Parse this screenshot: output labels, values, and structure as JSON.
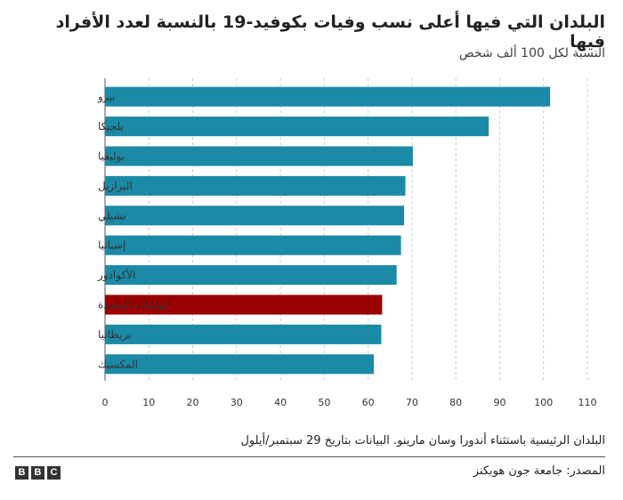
{
  "chart_data": {
    "type": "bar",
    "orientation": "horizontal",
    "title": "البلدان التي فيها أعلى نسب وفيات بكوفيد-19 بالنسبة لعدد الأفراد فيها",
    "subtitle": "النسبة لكل 100 ألف شخص",
    "categories": [
      "بيرو",
      "بلجيكا",
      "بوليفيا",
      "البرازيل",
      "تشيلي",
      "إسبانيا",
      "الأكوادور",
      "الولايات المتحدة",
      "بريطانيا",
      "المكسيك"
    ],
    "values": [
      101.5,
      87.5,
      70.2,
      68.5,
      68.2,
      67.5,
      66.5,
      63.2,
      63.0,
      61.3
    ],
    "highlight": "الولايات المتحدة",
    "bar_color": "#1a8aa6",
    "highlight_color": "#990000",
    "xlim": [
      0,
      110
    ],
    "xticks": [
      0,
      10,
      20,
      30,
      40,
      50,
      60,
      70,
      80,
      90,
      100,
      110
    ],
    "grid": "vertical dashed"
  },
  "footnote": "البلدان الرئيسية باستثناء أندورا وسان مارينو. البيانات بتاريخ 29 سبتمبر/أيلول",
  "source": "المصدر: جامعة جون هوبكنز",
  "logo": [
    "B",
    "B",
    "C"
  ]
}
